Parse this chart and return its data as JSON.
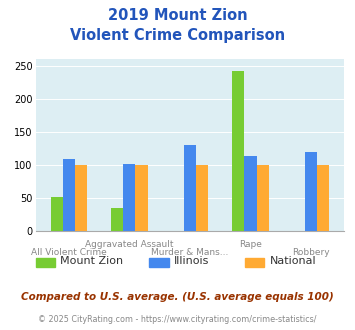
{
  "title_line1": "2019 Mount Zion",
  "title_line2": "Violent Crime Comparison",
  "categories": [
    "All Violent Crime",
    "Aggravated Assault",
    "Murder & Mans...",
    "Rape",
    "Robbery"
  ],
  "series": {
    "Mount Zion": [
      51,
      35,
      0,
      242,
      0
    ],
    "Illinois": [
      109,
      101,
      131,
      113,
      120
    ],
    "National": [
      100,
      100,
      100,
      100,
      100
    ]
  },
  "colors": {
    "Mount Zion": "#77cc33",
    "Illinois": "#4488ee",
    "National": "#ffaa33"
  },
  "ylim": [
    0,
    260
  ],
  "yticks": [
    0,
    50,
    100,
    150,
    200,
    250
  ],
  "bg_color": "#ddeef3",
  "footnote": "Compared to U.S. average. (U.S. average equals 100)",
  "copyright_prefix": "© 2025 CityRating.com - ",
  "copyright_link": "https://www.cityrating.com/crime-statistics/",
  "title_color": "#2255bb",
  "footnote_color": "#993300",
  "copyright_color": "#888888",
  "copyright_link_color": "#3366cc"
}
